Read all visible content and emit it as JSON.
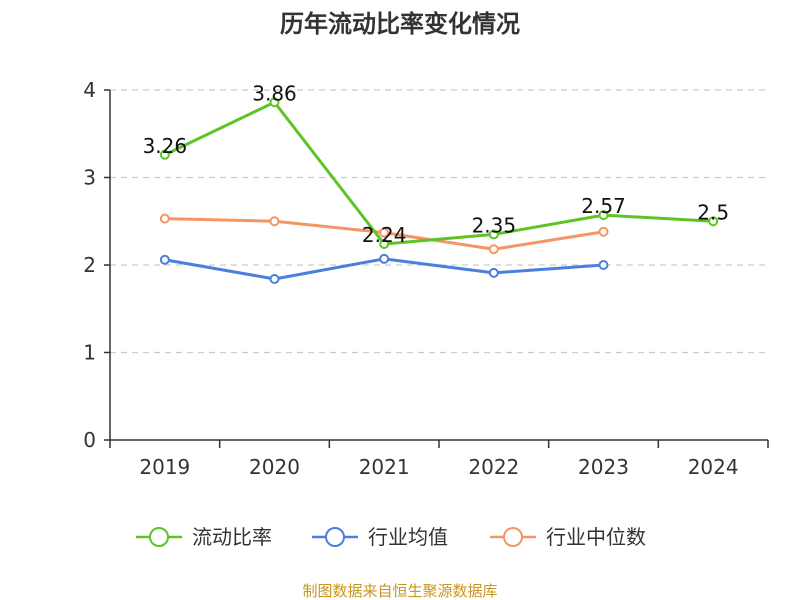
{
  "chart_data": {
    "type": "line",
    "title": "历年流动比率变化情况",
    "categories": [
      "2019",
      "2020",
      "2021",
      "2022",
      "2023",
      "2024"
    ],
    "ylim": [
      0,
      4
    ],
    "yticks": [
      "0",
      "1",
      "2",
      "3",
      "4"
    ],
    "grid": "horizontal-dashed",
    "legend_position": "bottom",
    "series": [
      {
        "name": "流动比率",
        "color": "#5ec426",
        "values": [
          3.26,
          3.86,
          2.24,
          2.35,
          2.57,
          2.5
        ],
        "labels": [
          "3.26",
          "3.86",
          "2.24",
          "2.35",
          "2.57",
          "2.5"
        ]
      },
      {
        "name": "行业均值",
        "color": "#4a7fdc",
        "values": [
          2.06,
          1.84,
          2.07,
          1.91,
          2.0,
          null
        ]
      },
      {
        "name": "行业中位数",
        "color": "#f59563",
        "values": [
          2.53,
          2.5,
          2.37,
          2.18,
          2.38,
          null
        ]
      }
    ]
  },
  "source": "制图数据来自恒生聚源数据库"
}
